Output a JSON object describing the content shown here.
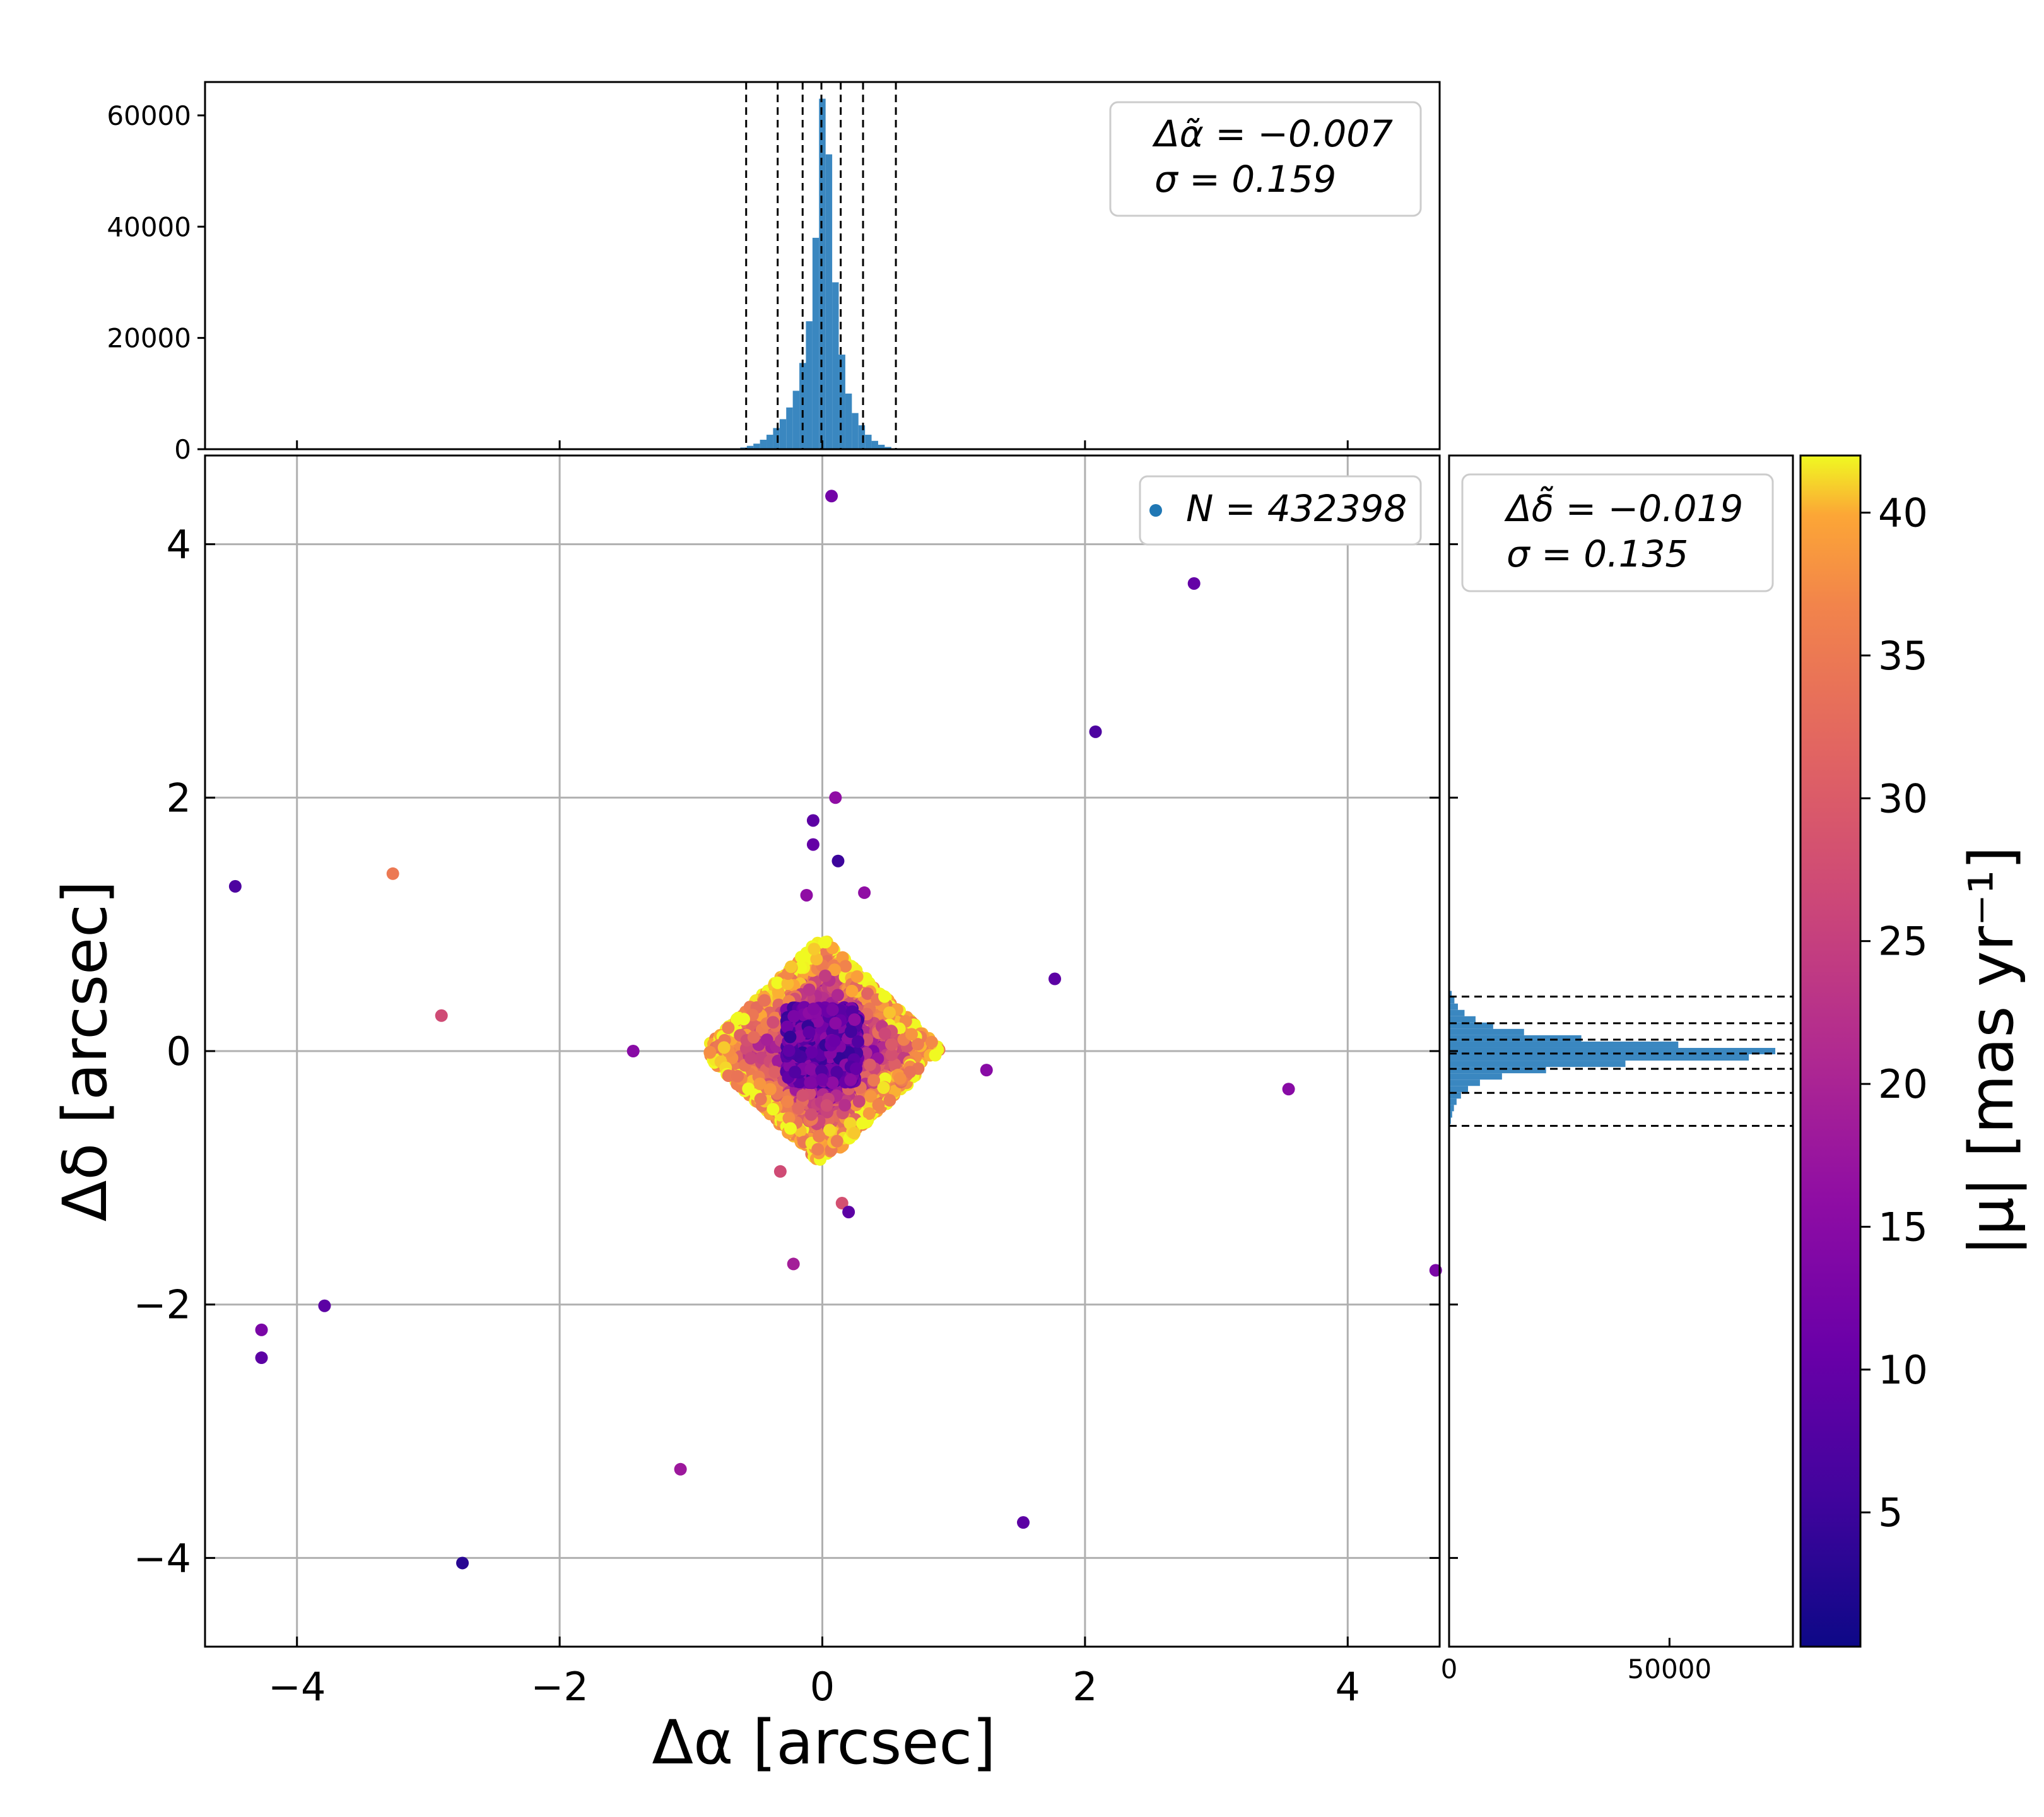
{
  "chart_data": {
    "type": "scatter",
    "scatter": {
      "xlabel": "Δα [arcsec]",
      "ylabel": "Δδ [arcsec]",
      "xlim": [
        -4.7,
        4.7
      ],
      "ylim": [
        -4.7,
        4.7
      ],
      "xticks": [
        -4,
        -2,
        0,
        2,
        4
      ],
      "yticks": [
        -4,
        -2,
        0,
        2,
        4
      ],
      "xtick_labels": [
        "−4",
        "−2",
        "0",
        "2",
        "4"
      ],
      "ytick_labels": [
        "−4",
        "−2",
        "0",
        "2",
        "4"
      ],
      "grid": true,
      "legend_label": "N = 432398",
      "legend_position": "top-right",
      "legend_marker_color": "#1f77b4",
      "color_variable": "|μ| [mas yr⁻¹]",
      "core": {
        "center": [
          0.0,
          0.0
        ],
        "half_width_diamond": 0.9,
        "note": "dense core of ~432398 points; bright (35–42) on edge, dark (5–15) in center"
      },
      "outliers": [
        {
          "x": 0.07,
          "y": 4.38,
          "mu": 12
        },
        {
          "x": 2.83,
          "y": 3.69,
          "mu": 10
        },
        {
          "x": 2.08,
          "y": 2.52,
          "mu": 7
        },
        {
          "x": 0.1,
          "y": 2.0,
          "mu": 16
        },
        {
          "x": -0.07,
          "y": 1.82,
          "mu": 9
        },
        {
          "x": -0.07,
          "y": 1.63,
          "mu": 10
        },
        {
          "x": 0.12,
          "y": 1.5,
          "mu": 5
        },
        {
          "x": -4.47,
          "y": 1.3,
          "mu": 7
        },
        {
          "x": -3.27,
          "y": 1.4,
          "mu": 35
        },
        {
          "x": 0.32,
          "y": 1.25,
          "mu": 16
        },
        {
          "x": -0.12,
          "y": 1.23,
          "mu": 16
        },
        {
          "x": 1.77,
          "y": 0.57,
          "mu": 9
        },
        {
          "x": -2.9,
          "y": 0.28,
          "mu": 27
        },
        {
          "x": -1.44,
          "y": 0.0,
          "mu": 15
        },
        {
          "x": 1.25,
          "y": -0.15,
          "mu": 15
        },
        {
          "x": 3.55,
          "y": -0.3,
          "mu": 15
        },
        {
          "x": 4.67,
          "y": -1.73,
          "mu": 13
        },
        {
          "x": 0.15,
          "y": -1.2,
          "mu": 28
        },
        {
          "x": 0.2,
          "y": -1.27,
          "mu": 9
        },
        {
          "x": -0.32,
          "y": -0.95,
          "mu": 27
        },
        {
          "x": -0.22,
          "y": -1.68,
          "mu": 19
        },
        {
          "x": -3.79,
          "y": -2.01,
          "mu": 9
        },
        {
          "x": -4.27,
          "y": -2.2,
          "mu": 13
        },
        {
          "x": -4.27,
          "y": -2.42,
          "mu": 9
        },
        {
          "x": -1.08,
          "y": -3.3,
          "mu": 18
        },
        {
          "x": 1.53,
          "y": -3.72,
          "mu": 9
        },
        {
          "x": -2.74,
          "y": -4.04,
          "mu": 3
        }
      ]
    },
    "hist_top": {
      "type": "histogram",
      "variable": "Δα",
      "xlim": [
        -4.7,
        4.7
      ],
      "ylim": [
        0,
        66000
      ],
      "yticks": [
        0,
        20000,
        40000,
        60000
      ],
      "ytick_labels": [
        "0",
        "20000",
        "40000",
        "60000"
      ],
      "bin_width": 0.05,
      "bins": [
        {
          "x": -0.6,
          "count": 300
        },
        {
          "x": -0.55,
          "count": 600
        },
        {
          "x": -0.5,
          "count": 1000
        },
        {
          "x": -0.45,
          "count": 1700
        },
        {
          "x": -0.4,
          "count": 2600
        },
        {
          "x": -0.35,
          "count": 3800
        },
        {
          "x": -0.3,
          "count": 5400
        },
        {
          "x": -0.25,
          "count": 7500
        },
        {
          "x": -0.2,
          "count": 10500
        },
        {
          "x": -0.15,
          "count": 15500
        },
        {
          "x": -0.1,
          "count": 23000
        },
        {
          "x": -0.05,
          "count": 38000
        },
        {
          "x": 0.0,
          "count": 63000
        },
        {
          "x": 0.05,
          "count": 53000
        },
        {
          "x": 0.1,
          "count": 30000
        },
        {
          "x": 0.15,
          "count": 17000
        },
        {
          "x": 0.2,
          "count": 10000
        },
        {
          "x": 0.25,
          "count": 6500
        },
        {
          "x": 0.3,
          "count": 4300
        },
        {
          "x": 0.35,
          "count": 2600
        },
        {
          "x": 0.4,
          "count": 1500
        },
        {
          "x": 0.45,
          "count": 800
        },
        {
          "x": 0.5,
          "count": 400
        }
      ],
      "vlines": [
        -0.58,
        -0.34,
        -0.15,
        -0.007,
        0.14,
        0.31,
        0.56
      ],
      "legend_median": "Δα̃ = −0.007",
      "legend_sigma": "σ = 0.159",
      "legend_position": "top-right",
      "bar_color": "#3a87c0"
    },
    "hist_right": {
      "type": "histogram",
      "variable": "Δδ",
      "orientation": "horizontal",
      "ylim": [
        -4.7,
        4.7
      ],
      "xlim": [
        0,
        78000
      ],
      "xticks": [
        0,
        50000
      ],
      "xtick_labels": [
        "0",
        "50000"
      ],
      "bin_width": 0.05,
      "bins": [
        {
          "y": 0.45,
          "count": 600
        },
        {
          "y": 0.4,
          "count": 1200
        },
        {
          "y": 0.35,
          "count": 2000
        },
        {
          "y": 0.3,
          "count": 3500
        },
        {
          "y": 0.25,
          "count": 6000
        },
        {
          "y": 0.2,
          "count": 10000
        },
        {
          "y": 0.15,
          "count": 17000
        },
        {
          "y": 0.1,
          "count": 30000
        },
        {
          "y": 0.05,
          "count": 52000
        },
        {
          "y": 0.0,
          "count": 74000
        },
        {
          "y": -0.05,
          "count": 68000
        },
        {
          "y": -0.1,
          "count": 40000
        },
        {
          "y": -0.15,
          "count": 22000
        },
        {
          "y": -0.2,
          "count": 12000
        },
        {
          "y": -0.25,
          "count": 7000
        },
        {
          "y": -0.3,
          "count": 4300
        },
        {
          "y": -0.35,
          "count": 2700
        },
        {
          "y": -0.4,
          "count": 1700
        },
        {
          "y": -0.45,
          "count": 1100
        },
        {
          "y": -0.5,
          "count": 700
        },
        {
          "y": -0.55,
          "count": 400
        }
      ],
      "hlines": [
        0.43,
        0.22,
        0.09,
        -0.019,
        -0.14,
        -0.33,
        -0.59
      ],
      "legend_median": "Δδ̃ = −0.019",
      "legend_sigma": "σ = 0.135",
      "legend_position": "top-right",
      "bar_color": "#3a87c0"
    },
    "colorbar": {
      "label": "|μ| [mas yr⁻¹]",
      "range": [
        0.3,
        42
      ],
      "ticks": [
        5,
        10,
        15,
        20,
        25,
        30,
        35,
        40
      ],
      "tick_labels": [
        "5",
        "10",
        "15",
        "20",
        "25",
        "30",
        "35",
        "40"
      ],
      "colormap": "plasma"
    }
  }
}
